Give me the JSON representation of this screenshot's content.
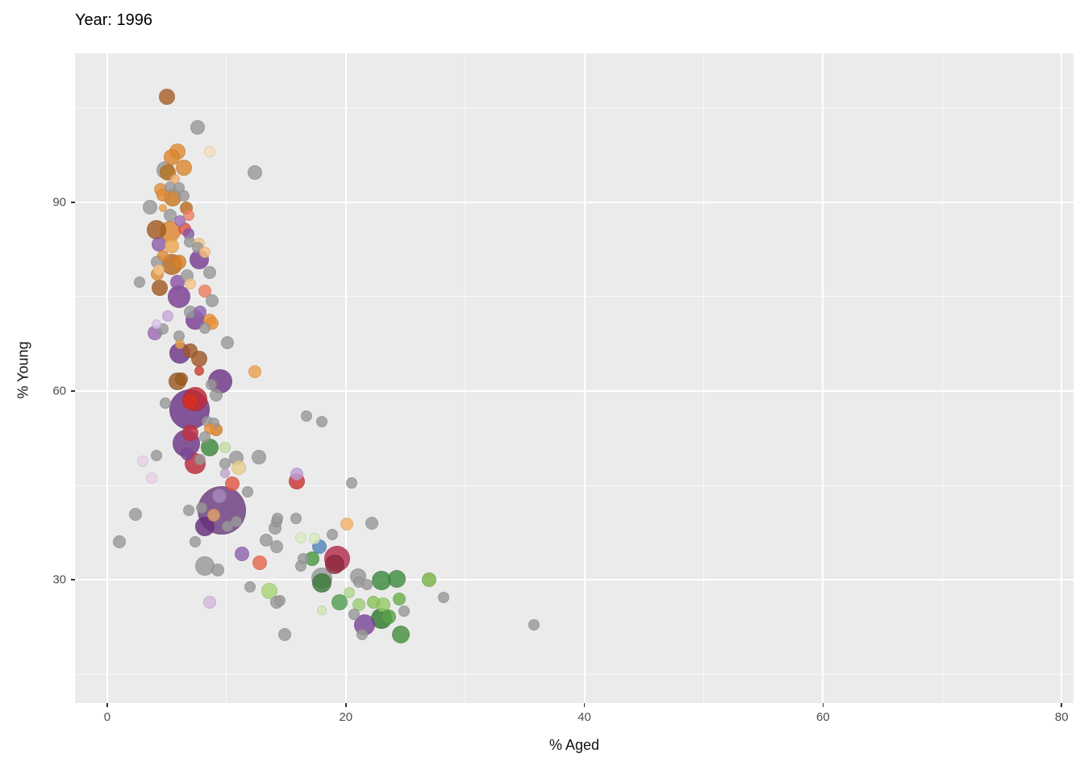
{
  "title": "Year: 1996",
  "axes": {
    "x_label": "% Aged",
    "y_label": "% Young"
  },
  "chart_data": {
    "type": "scatter",
    "title": "Year: 1996",
    "xlabel": "% Aged",
    "ylabel": "% Young",
    "xlim": [
      -2.7,
      81.0
    ],
    "ylim": [
      10.4,
      113.7
    ],
    "x_major_ticks": [
      0,
      20,
      40,
      60,
      80
    ],
    "y_major_ticks": [
      30,
      60,
      90
    ],
    "x_minor_ticks": [
      10,
      30,
      50,
      70
    ],
    "y_minor_ticks": [
      15,
      45,
      75,
      105
    ],
    "grid": "white major and minor gridlines on gray panel",
    "legend": "none",
    "panel_bg": "#EBEBEB",
    "grid_color": "#FFFFFF",
    "point_opacity": 0.82,
    "points_format": [
      "x_pct_aged",
      "y_pct_young",
      "radius_px",
      "color"
    ],
    "points": [
      [
        5.0,
        106.8,
        10,
        "#a9622b"
      ],
      [
        7.6,
        101.9,
        9,
        "#9a9a9a"
      ],
      [
        12.4,
        94.7,
        9,
        "#9a9a9a"
      ],
      [
        8.6,
        98.0,
        7,
        "#f7debc"
      ],
      [
        5.9,
        98.1,
        10,
        "#df8c36"
      ],
      [
        5.4,
        97.2,
        10,
        "#de8830"
      ],
      [
        6.4,
        95.5,
        10,
        "#dd8a33"
      ],
      [
        4.9,
        95.1,
        11,
        "#9a9a9a"
      ],
      [
        5.1,
        94.7,
        10,
        "#b5741f"
      ],
      [
        5.7,
        93.7,
        6,
        "#f0b070"
      ],
      [
        5.3,
        92.4,
        7,
        "#9a9a9a"
      ],
      [
        6.0,
        92.3,
        7,
        "#9a9a9a"
      ],
      [
        4.5,
        92.1,
        8,
        "#e3943e"
      ],
      [
        4.7,
        91.2,
        8,
        "#e08d35"
      ],
      [
        5.5,
        90.8,
        11,
        "#c87820"
      ],
      [
        6.4,
        91.0,
        7,
        "#9a9a9a"
      ],
      [
        6.6,
        89.1,
        8,
        "#bc6c20"
      ],
      [
        3.6,
        89.2,
        9,
        "#9a9a9a"
      ],
      [
        4.7,
        89.1,
        5,
        "#e9a04a"
      ],
      [
        5.3,
        87.9,
        8,
        "#9a9a9a"
      ],
      [
        6.8,
        87.9,
        7,
        "#f08468"
      ],
      [
        6.1,
        87.1,
        7,
        "#9d71b8"
      ],
      [
        4.1,
        85.6,
        12,
        "#a35c22"
      ],
      [
        5.3,
        85.4,
        13,
        "#df8630"
      ],
      [
        6.5,
        85.8,
        8,
        "#e05545"
      ],
      [
        6.8,
        85.0,
        7,
        "#8a57a8"
      ],
      [
        6.9,
        83.7,
        7,
        "#9a9a9a"
      ],
      [
        7.7,
        83.5,
        7,
        "#f6c488"
      ],
      [
        7.6,
        82.8,
        7,
        "#9a9a9a"
      ],
      [
        4.3,
        83.3,
        9,
        "#8d5fa8"
      ],
      [
        5.4,
        83.1,
        9,
        "#f0a850"
      ],
      [
        4.7,
        81.5,
        7,
        "#e08d35"
      ],
      [
        4.2,
        80.5,
        8,
        "#9a9a9a"
      ],
      [
        5.4,
        80.1,
        13,
        "#b96a1e"
      ],
      [
        8.2,
        82.1,
        7,
        "#f8c080"
      ],
      [
        7.7,
        80.9,
        12,
        "#7a3f92"
      ],
      [
        6.0,
        80.5,
        9,
        "#d9822a"
      ],
      [
        6.7,
        78.3,
        8,
        "#9a9a9a"
      ],
      [
        8.6,
        78.8,
        8,
        "#9a9a9a"
      ],
      [
        4.3,
        79.2,
        7,
        "#f6c488"
      ],
      [
        4.2,
        78.6,
        8,
        "#e08d35"
      ],
      [
        4.4,
        76.4,
        10,
        "#a35c22"
      ],
      [
        5.9,
        77.3,
        9,
        "#8a57a8"
      ],
      [
        7.0,
        77.1,
        7,
        "#f6c488"
      ],
      [
        2.7,
        77.3,
        7,
        "#9a9a9a"
      ],
      [
        8.2,
        75.9,
        8,
        "#f08060"
      ],
      [
        6.0,
        75.0,
        14,
        "#7a3f92"
      ],
      [
        8.8,
        74.4,
        8,
        "#9a9a9a"
      ],
      [
        7.0,
        72.6,
        8,
        "#9a9a9a"
      ],
      [
        7.8,
        72.6,
        8,
        "#9065b0"
      ],
      [
        7.4,
        71.3,
        12,
        "#7a3f92"
      ],
      [
        8.6,
        71.3,
        8,
        "#e8923a"
      ],
      [
        8.8,
        70.8,
        8,
        "#e8923a"
      ],
      [
        8.2,
        70.0,
        7,
        "#9a9a9a"
      ],
      [
        5.1,
        71.9,
        7,
        "#c9a8e0"
      ],
      [
        4.1,
        70.6,
        6,
        "#dcc6ec"
      ],
      [
        4.0,
        69.2,
        9,
        "#9e6bb5"
      ],
      [
        4.7,
        69.9,
        7,
        "#9a9a9a"
      ],
      [
        6.0,
        68.7,
        7,
        "#9a9a9a"
      ],
      [
        6.1,
        67.4,
        6,
        "#e8a04c"
      ],
      [
        6.1,
        66.0,
        13,
        "#6f3687"
      ],
      [
        7.0,
        66.4,
        9,
        "#a05a28"
      ],
      [
        7.7,
        65.1,
        10,
        "#a05a28"
      ],
      [
        10.1,
        67.7,
        8,
        "#9a9a9a"
      ],
      [
        12.4,
        63.1,
        8,
        "#eda24f"
      ],
      [
        7.7,
        63.2,
        6,
        "#d04030"
      ],
      [
        6.2,
        61.9,
        8,
        "#9a5a20"
      ],
      [
        5.9,
        61.5,
        11,
        "#9a5a20"
      ],
      [
        9.5,
        61.5,
        15,
        "#6f3687"
      ],
      [
        8.7,
        61.0,
        7,
        "#9a9a9a"
      ],
      [
        9.1,
        59.4,
        8,
        "#9a9a9a"
      ],
      [
        4.9,
        58.1,
        7,
        "#9a9a9a"
      ],
      [
        6.9,
        57.1,
        25,
        "#6a3585"
      ],
      [
        7.4,
        58.7,
        15,
        "#c22836"
      ],
      [
        7.0,
        58.3,
        10,
        "#d93020"
      ],
      [
        8.4,
        55.1,
        7,
        "#9a9a9a"
      ],
      [
        8.9,
        54.9,
        7,
        "#9a9a9a"
      ],
      [
        16.7,
        56.0,
        7,
        "#9a9a9a"
      ],
      [
        18.0,
        55.1,
        7,
        "#9a9a9a"
      ],
      [
        8.6,
        54.0,
        7,
        "#e8923a"
      ],
      [
        9.1,
        53.8,
        8,
        "#d9822a"
      ],
      [
        6.6,
        51.7,
        17,
        "#6f3687"
      ],
      [
        7.0,
        53.3,
        10,
        "#c53040"
      ],
      [
        8.2,
        52.7,
        7,
        "#9a9a9a"
      ],
      [
        8.6,
        51.0,
        11,
        "#3f8a3f"
      ],
      [
        9.9,
        51.0,
        7,
        "#c6dfa4"
      ],
      [
        6.7,
        50.0,
        8,
        "#7a4898"
      ],
      [
        4.1,
        49.7,
        7,
        "#9a9a9a"
      ],
      [
        3.0,
        48.8,
        7,
        "#ecd2e8"
      ],
      [
        7.4,
        48.5,
        13,
        "#c02a3c"
      ],
      [
        7.8,
        49.1,
        7,
        "#9a9a9a"
      ],
      [
        9.9,
        48.5,
        7,
        "#9a9a9a"
      ],
      [
        10.8,
        49.3,
        9,
        "#9a9a9a"
      ],
      [
        12.7,
        49.5,
        9,
        "#9a9a9a"
      ],
      [
        11.0,
        47.8,
        9,
        "#e8d092"
      ],
      [
        9.9,
        46.9,
        6,
        "#c3a8d1"
      ],
      [
        3.7,
        46.2,
        7,
        "#ecd2e8"
      ],
      [
        15.9,
        46.8,
        8,
        "#c0a0d8"
      ],
      [
        15.9,
        45.6,
        10,
        "#cc3333"
      ],
      [
        10.5,
        45.3,
        9,
        "#e2574a"
      ],
      [
        11.8,
        44.0,
        7,
        "#9a9a9a"
      ],
      [
        20.5,
        45.4,
        7,
        "#9a9a9a"
      ],
      [
        9.6,
        41.0,
        30,
        "#6e3d82"
      ],
      [
        9.4,
        43.3,
        9,
        "#a58abd"
      ],
      [
        7.9,
        41.4,
        7,
        "#9a9a9a"
      ],
      [
        6.8,
        41.0,
        7,
        "#9a9a9a"
      ],
      [
        8.9,
        40.3,
        8,
        "#dfa468"
      ],
      [
        2.4,
        40.4,
        8,
        "#9a9a9a"
      ],
      [
        1.0,
        36.0,
        8,
        "#9a9a9a"
      ],
      [
        8.2,
        38.5,
        12,
        "#66307c"
      ],
      [
        10.1,
        38.5,
        7,
        "#9a9a9a"
      ],
      [
        10.8,
        39.2,
        7,
        "#9a9a9a"
      ],
      [
        7.4,
        36.0,
        7,
        "#9a9a9a"
      ],
      [
        13.3,
        36.3,
        8,
        "#9a9a9a"
      ],
      [
        14.1,
        38.2,
        8,
        "#9a9a9a"
      ],
      [
        14.2,
        39.2,
        7,
        "#9a9a9a"
      ],
      [
        14.2,
        35.3,
        8,
        "#9a9a9a"
      ],
      [
        11.3,
        34.1,
        9,
        "#9065b0"
      ],
      [
        12.8,
        32.7,
        9,
        "#e8684f"
      ],
      [
        8.2,
        32.2,
        12,
        "#9a9a9a"
      ],
      [
        9.3,
        31.5,
        8,
        "#9a9a9a"
      ],
      [
        14.3,
        39.7,
        7,
        "#9a9a9a"
      ],
      [
        15.8,
        39.7,
        7,
        "#9a9a9a"
      ],
      [
        12.0,
        28.8,
        7,
        "#9a9a9a"
      ],
      [
        13.6,
        28.2,
        10,
        "#a8d878"
      ],
      [
        14.2,
        26.4,
        8,
        "#9a9a9a"
      ],
      [
        14.5,
        26.7,
        7,
        "#9a9a9a"
      ],
      [
        8.6,
        26.4,
        8,
        "#d4b8e0"
      ],
      [
        14.9,
        21.3,
        8,
        "#9a9a9a"
      ],
      [
        16.2,
        36.7,
        7,
        "#d8edc0"
      ],
      [
        17.4,
        36.5,
        7,
        "#d8edc0"
      ],
      [
        18.9,
        37.2,
        7,
        "#9a9a9a"
      ],
      [
        20.1,
        38.8,
        8,
        "#f5b36b"
      ],
      [
        22.2,
        39.0,
        8,
        "#9a9a9a"
      ],
      [
        17.8,
        35.2,
        9,
        "#5585bb"
      ],
      [
        17.2,
        33.3,
        9,
        "#4a9a3f"
      ],
      [
        16.4,
        33.3,
        7,
        "#9a9a9a"
      ],
      [
        16.2,
        32.2,
        7,
        "#9a9a9a"
      ],
      [
        19.3,
        33.3,
        16,
        "#b52e4e"
      ],
      [
        19.1,
        32.4,
        12,
        "#8e2a3e"
      ],
      [
        18.0,
        30.3,
        13,
        "#9a9a9a"
      ],
      [
        18.0,
        29.5,
        12,
        "#3a7a3a"
      ],
      [
        21.0,
        30.5,
        10,
        "#9a9a9a"
      ],
      [
        21.1,
        29.6,
        7,
        "#9a9a9a"
      ],
      [
        21.8,
        29.2,
        7,
        "#9a9a9a"
      ],
      [
        23.0,
        29.9,
        12,
        "#3c8a3c"
      ],
      [
        24.3,
        30.1,
        11,
        "#428c42"
      ],
      [
        27.0,
        30.0,
        9,
        "#7ab648"
      ],
      [
        28.2,
        27.2,
        7,
        "#9a9a9a"
      ],
      [
        24.5,
        26.9,
        8,
        "#6ab04c"
      ],
      [
        20.3,
        27.9,
        7,
        "#b0d890"
      ],
      [
        19.5,
        26.4,
        10,
        "#55a055"
      ],
      [
        21.1,
        26.0,
        8,
        "#9fce77"
      ],
      [
        22.3,
        26.4,
        8,
        "#8cc35e"
      ],
      [
        23.1,
        26.0,
        9,
        "#98cc6a"
      ],
      [
        20.7,
        24.5,
        7,
        "#9a9a9a"
      ],
      [
        18.0,
        25.1,
        6,
        "#d0e8b0"
      ],
      [
        23.0,
        23.8,
        13,
        "#2f7a2f"
      ],
      [
        21.6,
        22.8,
        13,
        "#7a4898"
      ],
      [
        23.6,
        24.1,
        9,
        "#57a347"
      ],
      [
        24.9,
        25.0,
        7,
        "#9a9a9a"
      ],
      [
        24.6,
        21.3,
        11,
        "#4a9040"
      ],
      [
        21.4,
        21.3,
        7,
        "#9a9a9a"
      ],
      [
        35.8,
        22.8,
        7,
        "#9a9a9a"
      ]
    ]
  }
}
